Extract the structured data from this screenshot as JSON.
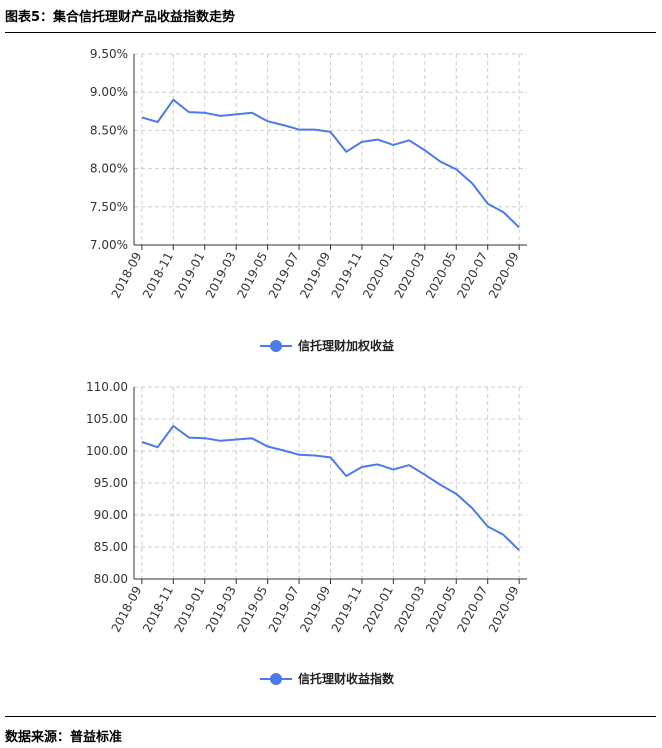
{
  "header": {
    "title": "图表5：集合信托理财产品收益指数走势"
  },
  "footer": {
    "source": "数据来源：普益标准"
  },
  "colors": {
    "series": "#4a7be8",
    "grid": "#cccccc",
    "axis": "#333333"
  },
  "chart_data": [
    {
      "type": "line",
      "x": [
        "2018-09",
        "2018-10",
        "2018-11",
        "2018-12",
        "2019-01",
        "2019-02",
        "2019-03",
        "2019-04",
        "2019-05",
        "2019-06",
        "2019-07",
        "2019-08",
        "2019-09",
        "2019-10",
        "2019-11",
        "2019-12",
        "2020-01",
        "2020-02",
        "2020-03",
        "2020-04",
        "2020-05",
        "2020-06",
        "2020-07",
        "2020-08",
        "2020-09"
      ],
      "xticks": [
        "2018-09",
        "2018-11",
        "2019-01",
        "2019-03",
        "2019-05",
        "2019-07",
        "2019-09",
        "2019-11",
        "2020-01",
        "2020-03",
        "2020-05",
        "2020-07",
        "2020-09"
      ],
      "yticks": [
        "7.00%",
        "7.50%",
        "8.00%",
        "8.50%",
        "9.00%",
        "9.50%"
      ],
      "ylim": [
        7.0,
        9.5
      ],
      "grid": true,
      "legend_position": "bottom-center",
      "series": [
        {
          "name": "信托理财加权收益",
          "values": [
            8.67,
            8.61,
            8.9,
            8.74,
            8.73,
            8.69,
            8.71,
            8.73,
            8.62,
            8.57,
            8.51,
            8.51,
            8.48,
            8.22,
            8.35,
            8.38,
            8.31,
            8.37,
            8.24,
            8.09,
            7.99,
            7.81,
            7.54,
            7.43,
            7.23
          ]
        }
      ]
    },
    {
      "type": "line",
      "x": [
        "2018-09",
        "2018-10",
        "2018-11",
        "2018-12",
        "2019-01",
        "2019-02",
        "2019-03",
        "2019-04",
        "2019-05",
        "2019-06",
        "2019-07",
        "2019-08",
        "2019-09",
        "2019-10",
        "2019-11",
        "2019-12",
        "2020-01",
        "2020-02",
        "2020-03",
        "2020-04",
        "2020-05",
        "2020-06",
        "2020-07",
        "2020-08",
        "2020-09"
      ],
      "xticks": [
        "2018-09",
        "2018-11",
        "2019-01",
        "2019-03",
        "2019-05",
        "2019-07",
        "2019-09",
        "2019-11",
        "2020-01",
        "2020-03",
        "2020-05",
        "2020-07",
        "2020-09"
      ],
      "yticks": [
        "80.00",
        "85.00",
        "90.00",
        "95.00",
        "100.00",
        "105.00",
        "110.00"
      ],
      "ylim": [
        80,
        110
      ],
      "grid": true,
      "legend_position": "bottom-center",
      "series": [
        {
          "name": "信托理财收益指数",
          "values": [
            101.4,
            100.6,
            103.9,
            102.1,
            102.0,
            101.6,
            101.8,
            102.0,
            100.7,
            100.1,
            99.4,
            99.3,
            99.0,
            96.1,
            97.5,
            97.9,
            97.1,
            97.8,
            96.3,
            94.7,
            93.3,
            91.1,
            88.2,
            86.9,
            84.5
          ]
        }
      ]
    }
  ]
}
